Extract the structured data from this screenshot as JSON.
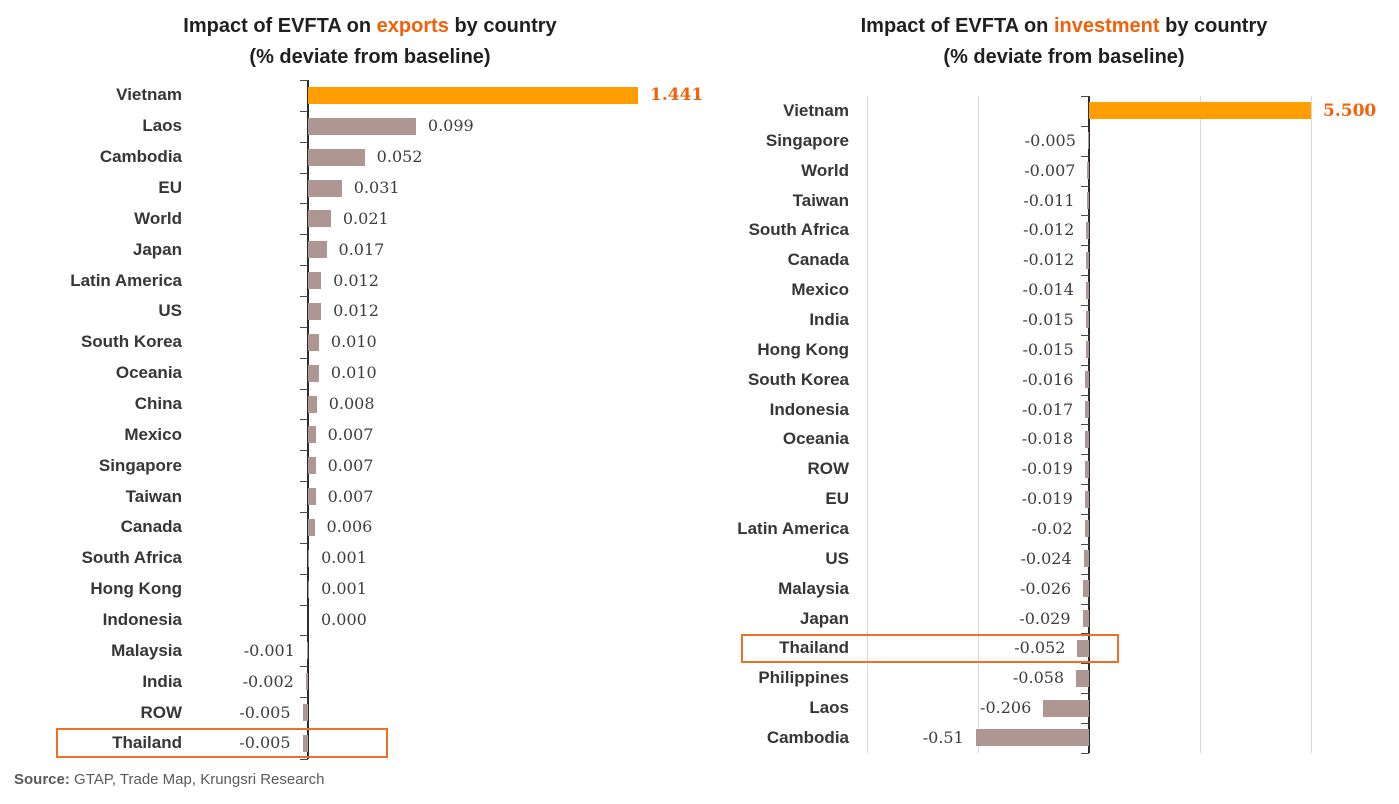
{
  "source_note": {
    "prefix": "Source:",
    "rest": " GTAP, Trade Map, Krungsri Research"
  },
  "colors": {
    "bar_default": "#ae9793",
    "bar_accent": "#ff9e01",
    "accent_text": "#f2600c",
    "title_text": "#1f1f1f",
    "category_label": "#363636",
    "value_label": "#3d3d3d",
    "highlight_box_border": "#ed7024",
    "gridline": "#d8d8d8",
    "axis": "#2b2b2b",
    "source_text": "#5a5a5a",
    "background": "#ffffff"
  },
  "chart_data": [
    {
      "type": "bar",
      "orientation": "horizontal",
      "title_prefix": "Impact of EVFTA on ",
      "title_highlight": "exports",
      "title_suffix": " by country",
      "subtitle": "(% deviate from baseline)",
      "accent_category": "Vietnam",
      "boxed_category": "Thailand",
      "grid": false,
      "xlim_display": [
        -0.05,
        0.3
      ],
      "note": "Vietnam bar clipped at chart edge",
      "categories": [
        "Vietnam",
        "Laos",
        "Cambodia",
        "EU",
        "World",
        "Japan",
        "Latin America",
        "US",
        "South Korea",
        "Oceania",
        "China",
        "Mexico",
        "Singapore",
        "Taiwan",
        "Canada",
        "South Africa",
        "Hong Kong",
        "Indonesia",
        "Malaysia",
        "India",
        "ROW",
        "Thailand"
      ],
      "values": [
        1.441,
        0.099,
        0.052,
        0.031,
        0.021,
        0.017,
        0.012,
        0.012,
        0.01,
        0.01,
        0.008,
        0.007,
        0.007,
        0.007,
        0.006,
        0.001,
        0.001,
        0.0,
        -0.001,
        -0.002,
        -0.005,
        -0.005
      ],
      "value_labels": [
        "1.441",
        "0.099",
        "0.052",
        "0.031",
        "0.021",
        "0.017",
        "0.012",
        "0.012",
        "0.010",
        "0.010",
        "0.008",
        "0.007",
        "0.007",
        "0.007",
        "0.006",
        "0.001",
        "0.001",
        "0.000",
        "-0.001",
        "-0.002",
        "-0.005",
        "-0.005"
      ]
    },
    {
      "type": "bar",
      "orientation": "horizontal",
      "title_prefix": "Impact of EVFTA on ",
      "title_highlight": "investment",
      "title_suffix": " by country",
      "subtitle": "(% deviate from baseline)",
      "accent_category": "Vietnam",
      "boxed_category": "Thailand",
      "grid": true,
      "xlim_display": [
        -1.0,
        1.0
      ],
      "gridline_step": 0.5,
      "note": "Vietnam bar clipped at chart edge",
      "categories": [
        "Vietnam",
        "Singapore",
        "World",
        "Taiwan",
        "South Africa",
        "Canada",
        "Mexico",
        "India",
        "Hong Kong",
        "South Korea",
        "Indonesia",
        "Oceania",
        "ROW",
        "EU",
        "Latin America",
        "US",
        "Malaysia",
        "Japan",
        "Thailand",
        "Philippines",
        "Laos",
        "Cambodia"
      ],
      "values": [
        5.5,
        -0.005,
        -0.007,
        -0.011,
        -0.012,
        -0.012,
        -0.014,
        -0.015,
        -0.015,
        -0.016,
        -0.017,
        -0.018,
        -0.019,
        -0.019,
        -0.02,
        -0.024,
        -0.026,
        -0.029,
        -0.052,
        -0.058,
        -0.206,
        -0.51
      ],
      "value_labels": [
        "5.500",
        "-0.005",
        "-0.007",
        "-0.011",
        "-0.012",
        "-0.012",
        "-0.014",
        "-0.015",
        "-0.015",
        "-0.016",
        "-0.017",
        "-0.018",
        "-0.019",
        "-0.019",
        "-0.02",
        "-0.024",
        "-0.026",
        "-0.029",
        "-0.052",
        "-0.058",
        "-0.206",
        "-0.51"
      ]
    }
  ]
}
